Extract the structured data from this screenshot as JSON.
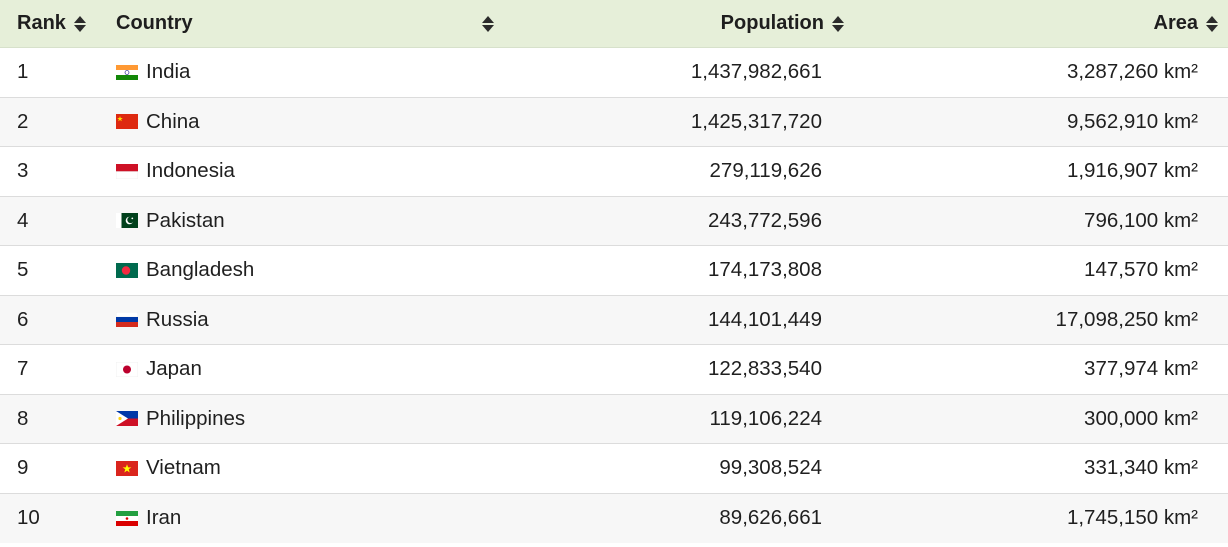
{
  "columns": {
    "rank": "Rank",
    "country": "Country",
    "population": "Population",
    "area": "Area"
  },
  "rows": [
    {
      "rank": "1",
      "country": "India",
      "flag": "india-flag-icon",
      "population": "1,437,982,661",
      "area": "3,287,260 km²"
    },
    {
      "rank": "2",
      "country": "China",
      "flag": "china-flag-icon",
      "population": "1,425,317,720",
      "area": "9,562,910 km²"
    },
    {
      "rank": "3",
      "country": "Indonesia",
      "flag": "indonesia-flag-icon",
      "population": "279,119,626",
      "area": "1,916,907 km²"
    },
    {
      "rank": "4",
      "country": "Pakistan",
      "flag": "pakistan-flag-icon",
      "population": "243,772,596",
      "area": "796,100 km²"
    },
    {
      "rank": "5",
      "country": "Bangladesh",
      "flag": "bangladesh-flag-icon",
      "population": "174,173,808",
      "area": "147,570 km²"
    },
    {
      "rank": "6",
      "country": "Russia",
      "flag": "russia-flag-icon",
      "population": "144,101,449",
      "area": "17,098,250 km²"
    },
    {
      "rank": "7",
      "country": "Japan",
      "flag": "japan-flag-icon",
      "population": "122,833,540",
      "area": "377,974 km²"
    },
    {
      "rank": "8",
      "country": "Philippines",
      "flag": "philippines-flag-icon",
      "population": "119,106,224",
      "area": "300,000 km²"
    },
    {
      "rank": "9",
      "country": "Vietnam",
      "flag": "vietnam-flag-icon",
      "population": "99,308,524",
      "area": "331,340 km²"
    },
    {
      "rank": "10",
      "country": "Iran",
      "flag": "iran-flag-icon",
      "population": "89,626,661",
      "area": "1,745,150 km²"
    }
  ],
  "colors": {
    "header_bg": "#e6efd9",
    "row_alt_bg": "#f7f7f7",
    "row_border": "#dcdcdc"
  }
}
